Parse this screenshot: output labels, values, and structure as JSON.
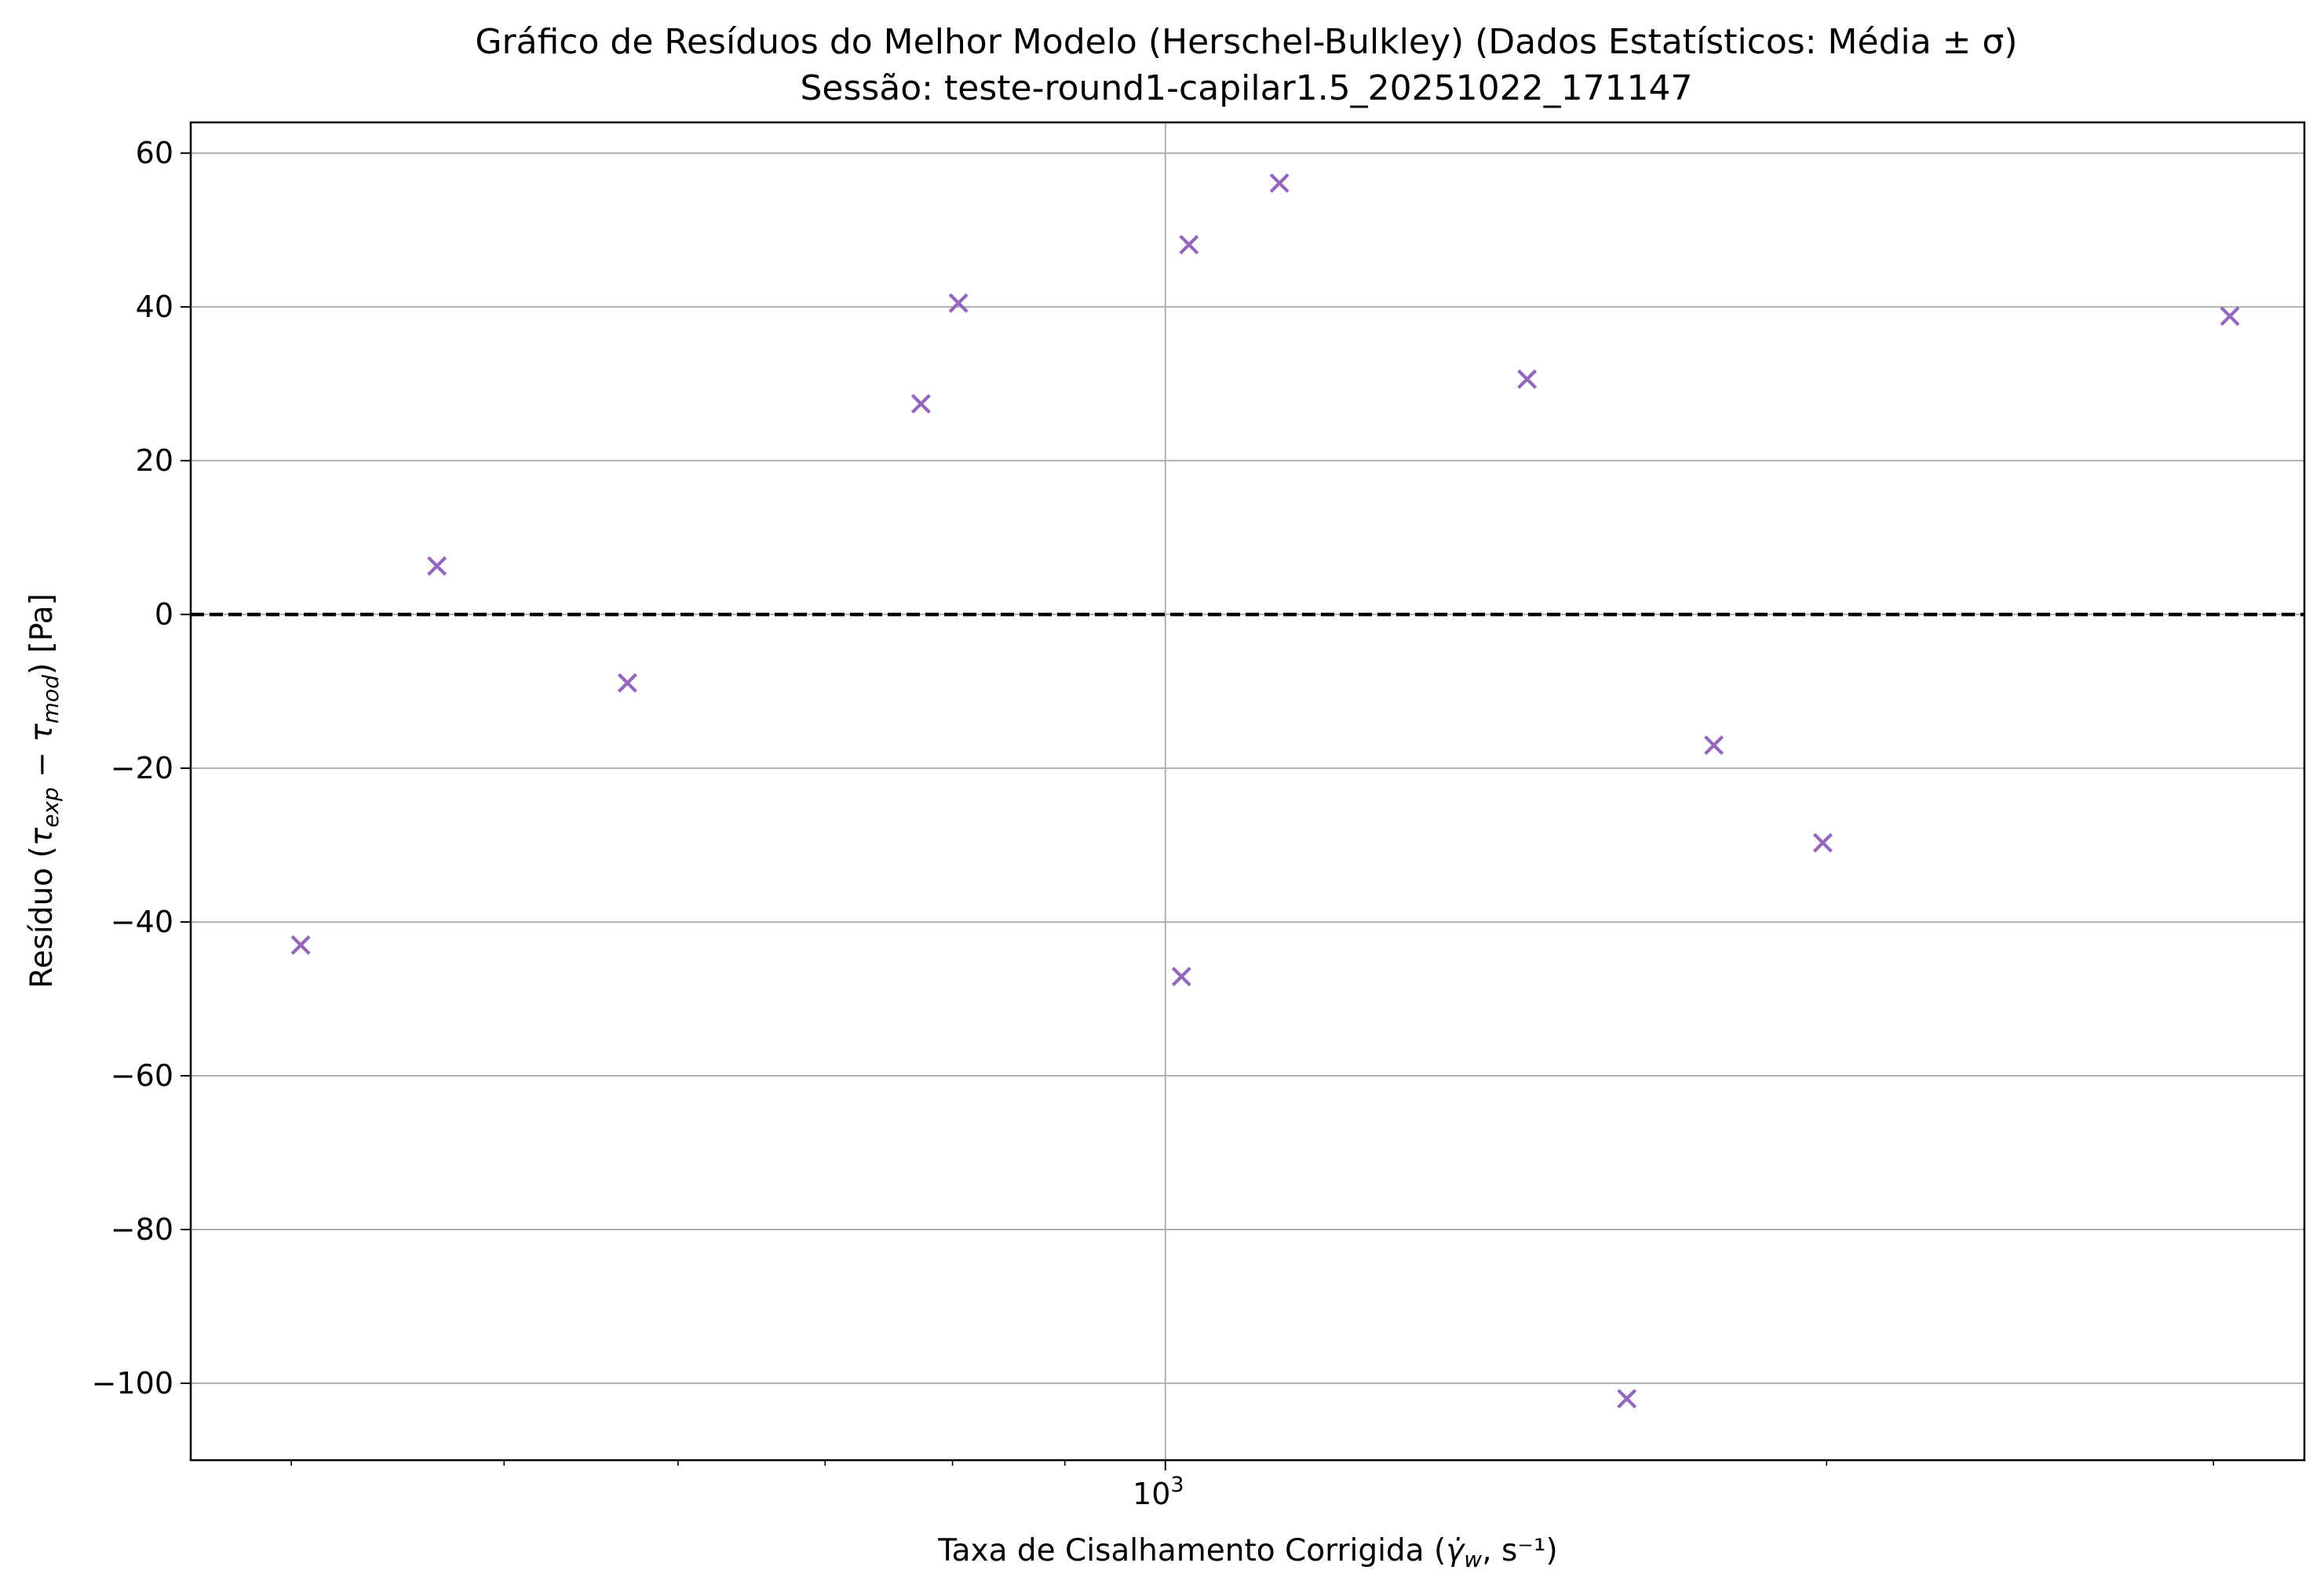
{
  "chart_data": {
    "type": "scatter",
    "title": "Gráfico de Resíduos do Melhor Modelo (Herschel-Bulkley) (Dados Estatísticos: Média ± σ)",
    "subtitle": "Sessão: teste-round1-capilar1.5_20251022_171147",
    "xlabel": {
      "prefix": "Taxa de Cisalhamento Corrigida (",
      "symbol": "γ̇",
      "symbol_sub": "w",
      "suffix": ", s⁻¹)"
    },
    "ylabel": {
      "prefix": "Resíduo (",
      "tau1": "τ",
      "tau1_sub": "exp",
      "minus": " − ",
      "tau2": "τ",
      "tau2_sub": "mod",
      "suffix": ") [Pa]"
    },
    "x_scale": "log",
    "xlim": [
      360,
      3300
    ],
    "ylim": [
      -110,
      64
    ],
    "y_ticks": [
      60,
      40,
      20,
      0,
      -20,
      -40,
      -60,
      -80,
      -100
    ],
    "y_tick_labels": [
      "60",
      "40",
      "20",
      "0",
      "−20",
      "−40",
      "−60",
      "−80",
      "−100"
    ],
    "x_tick_major": {
      "value": 1000,
      "base": "10",
      "exponent": "3"
    },
    "x_minor_ticks": [
      400,
      500,
      600,
      700,
      800,
      900,
      2000,
      3000
    ],
    "grid": true,
    "reference_line": {
      "y": 0,
      "style": "dashed",
      "color": "#000000"
    },
    "marker": "x",
    "color": "#9467bd",
    "points": [
      {
        "x": 404,
        "y": -43
      },
      {
        "x": 466,
        "y": 6.3
      },
      {
        "x": 569,
        "y": -8.9
      },
      {
        "x": 774,
        "y": 27.4
      },
      {
        "x": 805,
        "y": 40.5
      },
      {
        "x": 1017,
        "y": -47.1
      },
      {
        "x": 1025,
        "y": 48.1
      },
      {
        "x": 1127,
        "y": 56.1
      },
      {
        "x": 1461,
        "y": 30.6
      },
      {
        "x": 1622,
        "y": -102
      },
      {
        "x": 1777,
        "y": -17
      },
      {
        "x": 1992,
        "y": -29.7
      },
      {
        "x": 3052,
        "y": 38.8
      }
    ]
  }
}
